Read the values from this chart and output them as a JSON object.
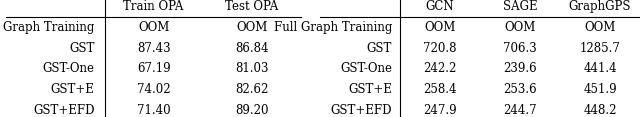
{
  "table1": {
    "col_headers": [
      "",
      "Train OPA",
      "Test OPA"
    ],
    "rows": [
      [
        "Full Graph Training",
        "OOM",
        "OOM"
      ],
      [
        "GST",
        "87.43",
        "86.84"
      ],
      [
        "GST-One",
        "67.19",
        "81.03"
      ],
      [
        "GST+E",
        "74.02",
        "82.62"
      ],
      [
        "GST+EFD",
        "71.40",
        "89.20"
      ]
    ]
  },
  "table2": {
    "col_headers": [
      "",
      "GCN",
      "SAGE",
      "GraphGPS"
    ],
    "rows": [
      [
        "Full Graph Training",
        "OOM",
        "OOM",
        "OOM"
      ],
      [
        "GST",
        "720.8",
        "706.3",
        "1285.7"
      ],
      [
        "GST-One",
        "242.2",
        "239.6",
        "441.4"
      ],
      [
        "GST+E",
        "258.4",
        "253.6",
        "451.9"
      ],
      [
        "GST+EFD",
        "247.9",
        "244.7",
        "448.2"
      ]
    ]
  },
  "background_color": "#ffffff",
  "font_size": 8.5
}
